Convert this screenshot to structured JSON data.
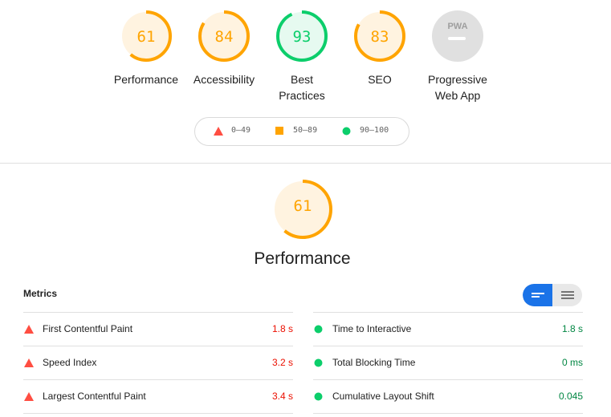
{
  "colors": {
    "fail": "#ff4e42",
    "average": "#ffa400",
    "pass": "#0cce6b",
    "pwa": "#9e9e9e",
    "toggle_active": "#1a73e8"
  },
  "gauges": [
    {
      "score": "61",
      "label": "Performance",
      "rating": "average",
      "value": 0.61
    },
    {
      "score": "84",
      "label": "Accessibility",
      "rating": "average",
      "value": 0.84
    },
    {
      "score": "93",
      "label": "Best Practices",
      "rating": "pass",
      "value": 0.93
    },
    {
      "score": "83",
      "label": "SEO",
      "rating": "average",
      "value": 0.83
    },
    {
      "badge": "PWA",
      "label": "Progressive Web App",
      "rating": "pwa"
    }
  ],
  "legend": [
    {
      "range": "0–49",
      "icon": "triangle-icon"
    },
    {
      "range": "50–89",
      "icon": "square-icon"
    },
    {
      "range": "90–100",
      "icon": "circle-icon"
    }
  ],
  "category": {
    "score": "61",
    "title": "Performance",
    "value": 0.61
  },
  "metrics": {
    "heading": "Metrics",
    "left": [
      {
        "name": "First Contentful Paint",
        "value": "1.8 s",
        "rating": "fail"
      },
      {
        "name": "Speed Index",
        "value": "3.2 s",
        "rating": "fail"
      },
      {
        "name": "Largest Contentful Paint",
        "value": "3.4 s",
        "rating": "fail"
      }
    ],
    "right": [
      {
        "name": "Time to Interactive",
        "value": "1.8 s",
        "rating": "pass"
      },
      {
        "name": "Total Blocking Time",
        "value": "0 ms",
        "rating": "pass"
      },
      {
        "name": "Cumulative Layout Shift",
        "value": "0.045",
        "rating": "pass"
      }
    ]
  }
}
